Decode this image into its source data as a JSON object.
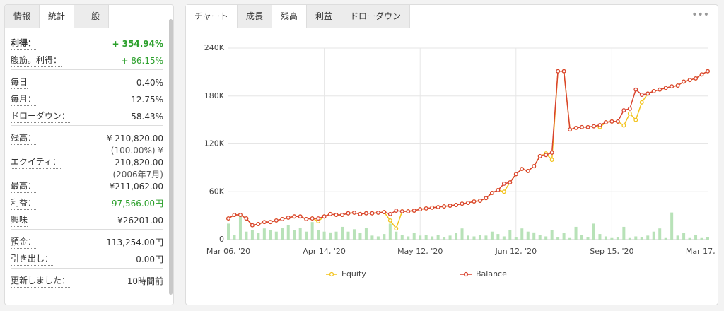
{
  "panel": {
    "tabs": [
      "情報",
      "統計",
      "一般"
    ],
    "active": 1,
    "groups": [
      [
        {
          "label": "利得：",
          "value": "+ 354.94%",
          "color": "#2ca02c",
          "bold": true
        },
        {
          "label": "腹筋。利得：",
          "value": "+ 86.15%",
          "color": "#2ca02c"
        }
      ],
      [
        {
          "label": "毎日",
          "value": "0.40%"
        },
        {
          "label": "毎月：",
          "value": "12.75%"
        },
        {
          "label": "ドローダウン：",
          "value": "58.43%"
        }
      ],
      [
        {
          "label": "残高：",
          "value": "¥ 210,820.00"
        },
        {
          "label": "エクイティ：",
          "note": "(100.00%) ¥",
          "value": "210,820.00"
        },
        {
          "label": "最高：",
          "note": "(2006年7月)",
          "value": "¥211,062.00"
        },
        {
          "label": "利益：",
          "value": "97,566.00円",
          "color": "#2ca02c"
        },
        {
          "label": "興味",
          "value": "-¥26201.00"
        }
      ],
      [
        {
          "label": "預金：",
          "value": "113,254.00円"
        },
        {
          "label": "引き出し：",
          "value": "0.00円"
        }
      ],
      [
        {
          "label": "更新しました：",
          "value": "10時間前"
        }
      ]
    ]
  },
  "chart_tabs": {
    "label": "チャート",
    "tabs": [
      "成長",
      "残高",
      "利益",
      "ドローダウン"
    ],
    "active": 1,
    "menu": "•••"
  },
  "chart_data": {
    "type": "line",
    "categories": [
      "Mar 06, '20",
      null,
      null,
      null,
      null,
      null,
      null,
      null,
      null,
      null,
      null,
      null,
      null,
      null,
      null,
      null,
      "Apr 14, '20",
      null,
      null,
      null,
      null,
      null,
      null,
      null,
      null,
      null,
      null,
      null,
      null,
      null,
      null,
      null,
      "May 12, '20",
      null,
      null,
      null,
      null,
      null,
      null,
      null,
      null,
      null,
      null,
      null,
      null,
      null,
      null,
      null,
      "Jun 12, '20",
      null,
      null,
      null,
      null,
      null,
      null,
      null,
      null,
      null,
      null,
      null,
      null,
      null,
      null,
      null,
      "Sep 15, '20",
      null,
      null,
      null,
      null,
      null,
      null,
      null,
      null,
      null,
      null,
      null,
      null,
      null,
      null,
      null,
      "Mar 17, '21"
    ],
    "series": [
      {
        "name": "Equity",
        "color": "#f2c31d",
        "values": [
          26.5,
          31,
          31,
          26.5,
          18,
          19.5,
          22,
          22,
          24,
          25.7,
          27.5,
          29,
          29,
          25.7,
          26.5,
          23,
          29,
          32,
          31,
          31,
          33,
          33.7,
          32,
          33,
          33,
          33.7,
          34.5,
          24,
          14,
          35.4,
          35.4,
          36.3,
          38,
          39,
          40,
          40.7,
          41.6,
          42.5,
          43.4,
          45,
          46,
          47.8,
          48.7,
          52,
          58.5,
          62,
          60,
          71.7,
          82,
          88.5,
          86,
          92,
          104.5,
          108,
          100,
          211,
          211,
          138,
          140,
          141,
          141,
          142,
          141,
          147,
          148,
          148,
          143,
          158,
          150,
          172,
          183,
          186,
          188,
          190,
          192,
          193,
          198,
          200,
          202,
          207,
          211
        ]
      },
      {
        "name": "Balance",
        "color": "#d9432f",
        "values": [
          26.5,
          31,
          31,
          26.5,
          18,
          19.5,
          22,
          22,
          24,
          25.7,
          27.5,
          29,
          29,
          25.7,
          26.5,
          26.5,
          29,
          32,
          31,
          31,
          33,
          33.7,
          32,
          33,
          33,
          33.7,
          34.5,
          32,
          36.3,
          35.4,
          35.4,
          36.3,
          38,
          39,
          40,
          40.7,
          41.6,
          42.5,
          43.4,
          45,
          46,
          47.8,
          48.7,
          52,
          58.5,
          62,
          70,
          71.7,
          82,
          88.5,
          86,
          92,
          104.5,
          106,
          109,
          211,
          211,
          138,
          140,
          141,
          141,
          142,
          143.5,
          147,
          148,
          148,
          162,
          164,
          188,
          181.5,
          183,
          186,
          188,
          190,
          192,
          193,
          198,
          200,
          202,
          207,
          211
        ]
      }
    ],
    "bars": {
      "color": "#b8e2b8",
      "values": [
        20,
        6,
        33,
        10,
        12,
        8,
        14,
        12,
        10,
        15,
        18,
        12,
        15,
        10,
        22,
        12,
        10,
        9,
        10,
        16,
        10,
        13,
        8,
        15,
        5,
        4,
        7,
        20,
        10,
        6,
        4,
        8,
        5,
        6,
        4,
        6,
        3,
        5,
        8,
        14,
        5,
        4,
        6,
        5,
        10,
        7,
        4,
        12,
        3,
        14,
        10,
        9,
        6,
        4,
        12,
        3,
        8,
        2,
        16,
        6,
        3,
        20,
        7,
        4,
        2,
        3,
        16,
        2,
        4,
        3,
        5,
        10,
        14,
        2,
        34,
        5,
        8,
        2,
        6,
        2,
        3
      ]
    },
    "ylim": [
      0,
      240
    ],
    "yticks": [
      0,
      {
        "value": 60,
        "label": "60K"
      },
      {
        "value": 120,
        "label": "120K"
      },
      {
        "value": 180,
        "label": "180K"
      },
      {
        "value": 240,
        "label": "240K"
      }
    ],
    "grid": true,
    "legend": "bottom"
  }
}
